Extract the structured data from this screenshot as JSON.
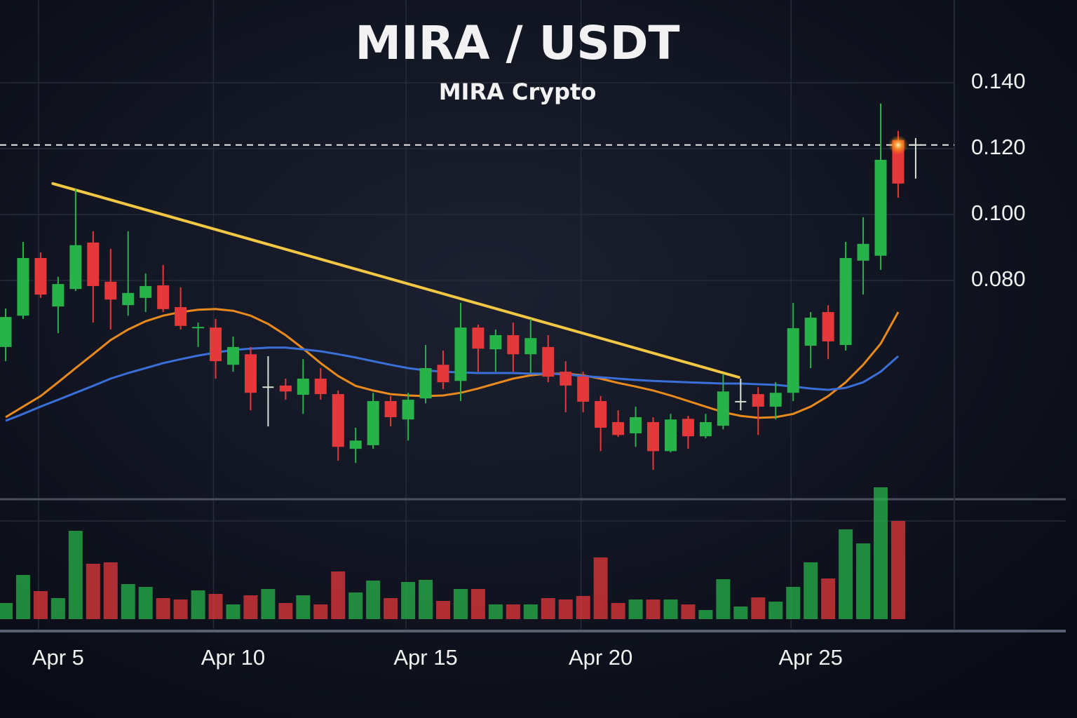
{
  "chart_data": {
    "type": "candlestick",
    "title": "MIRA / USDT",
    "subtitle": "MIRA Crypto",
    "categories": [
      null,
      null,
      null,
      "Apr 5",
      null,
      null,
      null,
      null,
      null,
      null,
      null,
      null,
      null,
      "Apr 10",
      null,
      null,
      null,
      null,
      null,
      null,
      null,
      null,
      null,
      null,
      "Apr 15",
      null,
      null,
      null,
      null,
      null,
      null,
      null,
      null,
      null,
      "Apr 20",
      null,
      null,
      null,
      null,
      null,
      null,
      null,
      null,
      null,
      null,
      null,
      "Apr 25",
      null,
      null,
      null,
      null,
      null,
      null
    ],
    "open": [
      0.0598,
      0.0693,
      0.0868,
      0.0721,
      0.0774,
      0.0915,
      0.0796,
      0.0725,
      0.0747,
      0.0785,
      0.0719,
      0.0655,
      0.0657,
      0.0544,
      0.0576,
      0.0476,
      0.0481,
      0.0453,
      0.0502,
      0.0455,
      0.0289,
      0.03,
      0.0434,
      0.0378,
      0.0442,
      0.0544,
      0.0495,
      0.0657,
      0.0591,
      0.0634,
      0.0576,
      0.0598,
      0.0523,
      0.0508,
      0.0434,
      0.037,
      0.0336,
      0.037,
      0.0282,
      0.038,
      0.0327,
      0.0359,
      0.0432,
      0.0455,
      0.0417,
      0.0459,
      0.0602,
      0.0704,
      0.0604,
      0.086,
      0.0875,
      0.1226,
      0.1211
    ],
    "high": [
      0.0715,
      0.0917,
      0.0885,
      0.0811,
      0.1077,
      0.0949,
      0.0896,
      0.0949,
      0.0821,
      0.0847,
      0.0779,
      0.0672,
      0.0683,
      0.063,
      0.0598,
      0.057,
      0.0502,
      0.0561,
      0.0534,
      0.0466,
      0.0353,
      0.0459,
      0.0449,
      0.0459,
      0.0604,
      0.0587,
      0.0732,
      0.0666,
      0.0651,
      0.0672,
      0.0683,
      0.0634,
      0.0555,
      0.0523,
      0.0449,
      0.0406,
      0.0417,
      0.0385,
      0.0395,
      0.0389,
      0.0395,
      0.0517,
      0.0502,
      0.0476,
      0.0491,
      0.0732,
      0.0704,
      0.0725,
      0.0917,
      0.0992,
      0.1337,
      0.1254,
      0.1232
    ],
    "low": [
      0.0555,
      0.0683,
      0.0747,
      0.064,
      0.0768,
      0.0672,
      0.0651,
      0.0693,
      0.0704,
      0.0704,
      0.0651,
      0.0598,
      0.0502,
      0.0523,
      0.0406,
      0.0357,
      0.0438,
      0.0395,
      0.0438,
      0.0253,
      0.0246,
      0.0289,
      0.0357,
      0.0314,
      0.0427,
      0.047,
      0.0434,
      0.0523,
      0.0523,
      0.0523,
      0.0519,
      0.0491,
      0.04,
      0.04,
      0.0282,
      0.0325,
      0.0295,
      0.0225,
      0.0278,
      0.0289,
      0.0321,
      0.0348,
      0.0406,
      0.0331,
      0.0378,
      0.0434,
      0.0534,
      0.0561,
      0.0587,
      0.0757,
      0.0832,
      0.1051,
      0.1109
    ],
    "close": [
      0.0689,
      0.0868,
      0.0757,
      0.0789,
      0.0907,
      0.0783,
      0.0742,
      0.0762,
      0.0783,
      0.0713,
      0.0662,
      0.0659,
      0.0555,
      0.0598,
      0.0459,
      0.0476,
      0.0463,
      0.0502,
      0.0455,
      0.0295,
      0.0314,
      0.0434,
      0.0385,
      0.0438,
      0.0534,
      0.0491,
      0.0657,
      0.0593,
      0.0634,
      0.0576,
      0.0625,
      0.0508,
      0.0481,
      0.0432,
      0.0353,
      0.0331,
      0.0385,
      0.0282,
      0.0378,
      0.0327,
      0.037,
      0.0463,
      0.0432,
      0.0417,
      0.0459,
      0.0655,
      0.0687,
      0.0615,
      0.0868,
      0.0911,
      0.1166,
      0.1094,
      0.1211
    ],
    "volume": [
      23,
      63,
      40,
      30,
      126,
      79,
      81,
      50,
      46,
      30,
      28,
      41,
      36,
      21,
      34,
      43,
      23,
      34,
      21,
      68,
      38,
      55,
      30,
      53,
      56,
      26,
      43,
      43,
      21,
      21,
      21,
      30,
      28,
      33,
      88,
      23,
      28,
      28,
      28,
      21,
      13,
      57,
      18,
      31,
      25,
      46,
      81,
      58,
      128,
      108,
      188,
      140,
      null
    ],
    "volume_lim": [
      0,
      200
    ],
    "up_color": "#27b34a",
    "down_color": "#e5383b",
    "moving_averages": [
      {
        "color": "#e98a1c",
        "values": [
          0.0385,
          0.0417,
          0.0449,
          0.0491,
          0.0534,
          0.0576,
          0.0619,
          0.0651,
          0.0676,
          0.0693,
          0.0704,
          0.0711,
          0.0713,
          0.0708,
          0.0693,
          0.0668,
          0.0634,
          0.0593,
          0.0549,
          0.051,
          0.048,
          0.0466,
          0.0455,
          0.0451,
          0.0449,
          0.0451,
          0.0459,
          0.0472,
          0.0487,
          0.0502,
          0.0512,
          0.0517,
          0.0517,
          0.0512,
          0.0502,
          0.0489,
          0.0478,
          0.0466,
          0.0451,
          0.0434,
          0.0417,
          0.04,
          0.0389,
          0.0383,
          0.0385,
          0.0395,
          0.0417,
          0.0449,
          0.0491,
          0.0544,
          0.0608,
          0.0704,
          null
        ]
      },
      {
        "color": "#3a6fd8",
        "values": [
          0.0374,
          0.0395,
          0.0417,
          0.0438,
          0.0459,
          0.048,
          0.0502,
          0.0519,
          0.0534,
          0.0549,
          0.0561,
          0.0572,
          0.0581,
          0.0589,
          0.0593,
          0.0596,
          0.0596,
          0.0591,
          0.0585,
          0.0576,
          0.0566,
          0.0555,
          0.0544,
          0.0534,
          0.0527,
          0.0523,
          0.0521,
          0.0519,
          0.0519,
          0.0519,
          0.0517,
          0.0517,
          0.0515,
          0.051,
          0.0506,
          0.0502,
          0.0498,
          0.0495,
          0.0493,
          0.0491,
          0.0489,
          0.0487,
          0.0487,
          0.0485,
          0.0483,
          0.0478,
          0.0472,
          0.0468,
          0.0474,
          0.0491,
          0.0523,
          0.057,
          null
        ]
      }
    ],
    "trendline": {
      "color": "#f2c744",
      "x": [
        2.7,
        41.9
      ],
      "values": [
        0.1094,
        0.0506
      ]
    },
    "price_line": 0.1211,
    "ylim": [
      0.0136,
      0.1651
    ],
    "yticks": [
      {
        "value": 0.14,
        "label": "0.140"
      },
      {
        "value": 0.12,
        "label": "0.120"
      },
      {
        "value": 0.1,
        "label": "0.100"
      },
      {
        "value": 0.08,
        "label": "0.080"
      }
    ],
    "grid": true
  }
}
